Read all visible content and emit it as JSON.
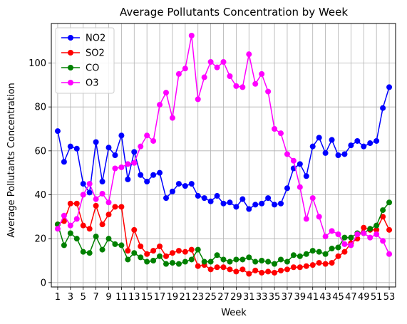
{
  "chart_data": {
    "type": "line",
    "title": "Average Pollutants Concentration by Week",
    "xlabel": "Week",
    "ylabel": "Average Pollutants Concentration",
    "xlim": [
      0,
      54
    ],
    "ylim": [
      -2,
      118
    ],
    "x_ticks": [
      1,
      3,
      5,
      7,
      9,
      11,
      13,
      15,
      17,
      19,
      21,
      23,
      25,
      27,
      29,
      31,
      33,
      35,
      37,
      39,
      41,
      43,
      45,
      47,
      49,
      51,
      53
    ],
    "y_ticks": [
      0,
      20,
      40,
      60,
      80,
      100
    ],
    "grid": true,
    "legend_position": "top-left",
    "x": [
      1,
      2,
      3,
      4,
      5,
      6,
      7,
      8,
      9,
      10,
      11,
      12,
      13,
      14,
      15,
      16,
      17,
      18,
      19,
      20,
      21,
      22,
      23,
      24,
      25,
      26,
      27,
      28,
      29,
      30,
      31,
      32,
      33,
      34,
      35,
      36,
      37,
      38,
      39,
      40,
      41,
      42,
      43,
      44,
      45,
      46,
      47,
      48,
      49,
      50,
      51,
      52,
      53
    ],
    "series": [
      {
        "name": "NO2",
        "color": "#0000ff",
        "values": [
          69,
          55,
          62,
          61,
          45,
          41,
          64,
          46,
          61.5,
          58,
          67,
          47,
          59.5,
          49,
          46,
          49,
          50,
          38.5,
          41.5,
          45,
          44,
          45,
          39.5,
          38.5,
          37,
          39.5,
          36,
          36.5,
          34.5,
          38,
          33.5,
          35.5,
          36,
          38.5,
          35.5,
          36,
          43,
          52,
          54,
          48.5,
          62,
          66,
          59,
          65,
          58,
          58.5,
          62.5,
          64.5,
          62,
          63.5,
          64.5,
          79.5,
          89
        ]
      },
      {
        "name": "SO2",
        "color": "#ff0000",
        "values": [
          26.5,
          28,
          36,
          36,
          26,
          24.5,
          35,
          26.5,
          31,
          34.5,
          34.5,
          14.5,
          24,
          16.5,
          13,
          14.5,
          16.5,
          12,
          13.5,
          14.5,
          14,
          15,
          7.5,
          8,
          6,
          7,
          7,
          6,
          5,
          6,
          4,
          5.5,
          4.5,
          5,
          4.5,
          5.5,
          6,
          7,
          7,
          7.5,
          8,
          9,
          8.5,
          9,
          12,
          14,
          18,
          20,
          25,
          24,
          24,
          30,
          24
        ]
      },
      {
        "name": "CO",
        "color": "#008000",
        "values": [
          26.5,
          17,
          22.5,
          20,
          14,
          13.5,
          21,
          15,
          20,
          17.5,
          17,
          10.5,
          13.5,
          11.5,
          9.5,
          10,
          12,
          8.5,
          9,
          8.5,
          9.5,
          10.5,
          15,
          9.5,
          9.5,
          12.5,
          10.5,
          9.5,
          10.5,
          10.5,
          11.5,
          9.5,
          10,
          9.5,
          8.5,
          10.5,
          9.5,
          12.5,
          12,
          13,
          14.5,
          14,
          13,
          15.5,
          16,
          20.5,
          20.5,
          22.5,
          22.5,
          24.5,
          26,
          33,
          36.5
        ]
      },
      {
        "name": "O3",
        "color": "#ff00ff",
        "values": [
          24.5,
          30.5,
          26,
          29,
          40,
          45,
          38,
          40.5,
          36.5,
          52,
          52.5,
          54,
          54.5,
          62,
          67,
          64.5,
          81,
          86.5,
          75,
          95,
          97.5,
          112.5,
          83.5,
          93.5,
          100.5,
          98,
          100.5,
          94,
          89.5,
          89,
          104,
          90.5,
          95,
          87,
          70,
          68,
          58.5,
          55.5,
          43.5,
          29,
          38.5,
          30,
          21,
          23.5,
          22,
          17.5,
          17,
          22,
          22.5,
          20.5,
          22,
          19,
          13
        ]
      }
    ]
  }
}
